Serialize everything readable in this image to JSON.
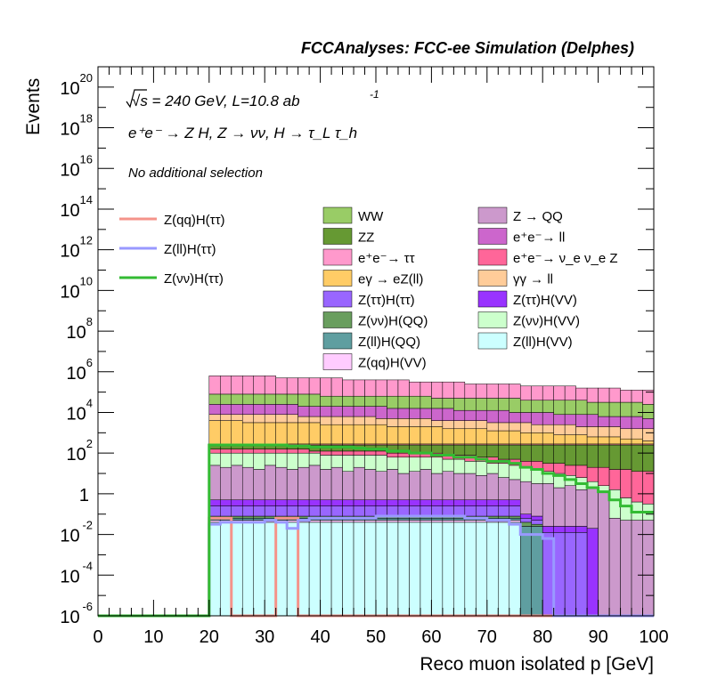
{
  "chart_data": {
    "type": "area",
    "title": "FCCAnalyses: FCC-ee Simulation (Delphes)",
    "ylabel": "Events",
    "xlabel": "Reco muon isolated p [GeV]",
    "xlim": [
      0,
      100
    ],
    "ylim_log10": [
      -6,
      21
    ],
    "yscale": "log",
    "x_ticks": [
      0,
      10,
      20,
      30,
      40,
      50,
      60,
      70,
      80,
      90,
      100
    ],
    "x_tick_labels": [
      "0",
      "10",
      "20",
      "30",
      "40",
      "50",
      "60",
      "70",
      "80",
      "90",
      "100"
    ],
    "y_tick_labels": [
      {
        "exp": 20,
        "text": "10",
        "sup": "20"
      },
      {
        "exp": 18,
        "text": "10",
        "sup": "18"
      },
      {
        "exp": 16,
        "text": "10",
        "sup": "16"
      },
      {
        "exp": 14,
        "text": "10",
        "sup": "14"
      },
      {
        "exp": 12,
        "text": "10",
        "sup": "12"
      },
      {
        "exp": 10,
        "text": "10",
        "sup": "10"
      },
      {
        "exp": 8,
        "text": "10",
        "sup": "8"
      },
      {
        "exp": 6,
        "text": "10",
        "sup": "6"
      },
      {
        "exp": 4,
        "text": "10",
        "sup": "4"
      },
      {
        "exp": 2,
        "text": "10",
        "sup": "2"
      },
      {
        "exp": 0,
        "text": "1",
        "sup": ""
      },
      {
        "exp": -2,
        "text": "10",
        "sup": "-2"
      },
      {
        "exp": -4,
        "text": "10",
        "sup": "-4"
      },
      {
        "exp": -6,
        "text": "10",
        "sup": "-6"
      }
    ],
    "annotations": {
      "energy": "√s = 240 GeV, L=10.8 ab",
      "energy_sup": "-1",
      "process": "e⁺e⁻ → Z H, Z → νν, H → τ_L τ_h",
      "selection": "No additional selection"
    },
    "bin_width": 2,
    "bin_starts": [
      20,
      22,
      24,
      26,
      28,
      30,
      32,
      34,
      36,
      38,
      40,
      42,
      44,
      46,
      48,
      50,
      52,
      54,
      56,
      58,
      60,
      62,
      64,
      66,
      68,
      70,
      72,
      74,
      76,
      78,
      80,
      82,
      84,
      86,
      88,
      90,
      92,
      94,
      96,
      98
    ],
    "stack_bottom_log10": -6,
    "stack_layers": [
      {
        "name": "Z(ll)H(VV)",
        "color": "#ccffff",
        "log10_top": [
          -1.4,
          -1.4,
          -1.4,
          -1.4,
          -1.4,
          -1.4,
          -1.4,
          -1.4,
          -1.4,
          -1.4,
          -1.4,
          -1.4,
          -1.4,
          -1.4,
          -1.4,
          -1.4,
          -1.4,
          -1.4,
          -1.4,
          -1.4,
          -1.4,
          -1.4,
          -1.4,
          -1.4,
          -1.4,
          -1.4,
          -1.4,
          -1.4,
          -6,
          -6,
          -6,
          -6,
          -6,
          -6,
          -6,
          -6,
          -6,
          -6,
          -6,
          -6
        ]
      },
      {
        "name": "Z(qq)H(VV)",
        "color": "#ffccff",
        "log10_top": [
          -1.3,
          -1.3,
          -1.3,
          -1.3,
          -1.3,
          -1.3,
          -1.3,
          -1.3,
          -1.3,
          -1.3,
          -1.3,
          -1.3,
          -1.3,
          -1.3,
          -1.3,
          -1.3,
          -1.3,
          -1.3,
          -1.3,
          -1.3,
          -1.3,
          -1.3,
          -1.3,
          -1.3,
          -1.3,
          -1.3,
          -1.3,
          -1.3,
          -6,
          -6,
          -6,
          -6,
          -6,
          -6,
          -6,
          -6,
          -6,
          -6,
          -6,
          -6
        ]
      },
      {
        "name": "Z(ll)H(QQ)",
        "color": "#5f9ea0",
        "log10_top": [
          -1.2,
          -1.2,
          -1.2,
          -1.2,
          -1.2,
          -1.2,
          -1.2,
          -1.2,
          -1.2,
          -1.2,
          -1.2,
          -1.2,
          -1.2,
          -1.2,
          -1.2,
          -1.2,
          -1.2,
          -1.2,
          -1.2,
          -1.2,
          -1.2,
          -1.2,
          -1.2,
          -1.2,
          -1.2,
          -1.2,
          -1.2,
          -1.2,
          -1.6,
          -1.6,
          -6,
          -6,
          -6,
          -6,
          -6,
          -6,
          -6,
          -6,
          -6,
          -6
        ]
      },
      {
        "name": "Z(νν)H(QQ)",
        "color": "#699e5e",
        "log10_top": [
          -1.1,
          -1.1,
          -1.1,
          -1.1,
          -1.1,
          -1.1,
          -1.1,
          -1.1,
          -1.1,
          -1.1,
          -1.1,
          -1.1,
          -1.1,
          -1.1,
          -1.1,
          -1.1,
          -1.1,
          -1.1,
          -1.1,
          -1.1,
          -1.1,
          -1.1,
          -1.1,
          -1.1,
          -1.1,
          -1.1,
          -1.1,
          -1.1,
          -1.4,
          -1.5,
          -6,
          -6,
          -6,
          -6,
          -6,
          -6,
          -6,
          -6,
          -6,
          -6
        ]
      },
      {
        "name": "Z(ττ)H(ττ)",
        "color": "#9966ff",
        "log10_top": [
          -0.6,
          -0.6,
          -0.6,
          -0.6,
          -0.6,
          -0.6,
          -0.6,
          -0.6,
          -0.6,
          -0.6,
          -0.6,
          -0.6,
          -0.6,
          -0.6,
          -0.6,
          -0.6,
          -0.6,
          -0.6,
          -0.6,
          -0.6,
          -0.6,
          -0.6,
          -0.6,
          -0.6,
          -0.6,
          -0.6,
          -0.6,
          -0.6,
          -1.2,
          -1.3,
          -1.9,
          -1.9,
          -1.9,
          -1.9,
          -6,
          -6,
          -6,
          -6,
          -6,
          -6
        ]
      },
      {
        "name": "Z(ττ)H(VV)",
        "color": "#9933ff",
        "log10_top": [
          -0.3,
          -0.3,
          -0.3,
          -0.3,
          -0.3,
          -0.3,
          -0.3,
          -0.3,
          -0.3,
          -0.3,
          -0.3,
          -0.3,
          -0.3,
          -0.3,
          -0.3,
          -0.3,
          -0.3,
          -0.3,
          -0.3,
          -0.3,
          -0.3,
          -0.3,
          -0.3,
          -0.3,
          -0.3,
          -0.3,
          -0.3,
          -0.3,
          -1.0,
          -1.1,
          -1.6,
          -1.6,
          -1.6,
          -1.6,
          -1.7,
          -6,
          -6,
          -6,
          -6,
          -6
        ]
      },
      {
        "name": "Z → QQ",
        "color": "#cc99cc",
        "log10_top": [
          1.4,
          1.3,
          1.4,
          1.3,
          1.2,
          1.4,
          1.3,
          1.2,
          1.3,
          1.4,
          1.2,
          1.3,
          1.1,
          1.3,
          1.2,
          1.1,
          1.2,
          1.0,
          1.1,
          1.2,
          1.0,
          1.1,
          1.0,
          1.0,
          0.9,
          1.0,
          0.8,
          0.7,
          0.6,
          0.5,
          0.5,
          0.3,
          0.4,
          0.2,
          0.3,
          0.1,
          -1.2,
          -1.3,
          -1.3,
          -1.3
        ]
      },
      {
        "name": "Z(νν)H(VV)",
        "color": "#ccffcc",
        "log10_top": [
          2.0,
          2.0,
          2.0,
          2.0,
          2.0,
          2.0,
          2.0,
          2.0,
          2.0,
          2.0,
          1.9,
          1.9,
          1.9,
          1.9,
          1.9,
          1.9,
          1.8,
          1.8,
          1.8,
          1.8,
          1.8,
          1.7,
          1.7,
          1.6,
          1.6,
          1.5,
          1.5,
          1.4,
          1.3,
          1.2,
          1.1,
          1.0,
          0.9,
          0.8,
          0.6,
          0.4,
          0.2,
          -0.2,
          -0.4,
          -0.5
        ]
      },
      {
        "name": "e⁺e⁻ → ν_e ν_e Z",
        "color": "#ff6699",
        "log10_top": [
          2.2,
          2.2,
          2.2,
          2.2,
          2.2,
          2.2,
          2.2,
          2.2,
          2.2,
          2.1,
          2.1,
          2.1,
          2.1,
          2.1,
          2.1,
          2.1,
          2.0,
          2.0,
          2.0,
          2.0,
          2.0,
          1.9,
          1.9,
          1.9,
          1.8,
          1.8,
          1.7,
          1.7,
          1.6,
          1.6,
          1.5,
          1.5,
          1.4,
          1.4,
          1.3,
          1.3,
          1.2,
          1.2,
          1.1,
          1.1
        ]
      },
      {
        "name": "ZZ",
        "color": "#669933",
        "log10_top": [
          2.4,
          2.4,
          2.4,
          2.4,
          2.4,
          2.4,
          2.4,
          2.4,
          2.4,
          2.4,
          2.4,
          2.4,
          2.4,
          2.4,
          2.4,
          2.4,
          2.4,
          2.4,
          2.4,
          2.4,
          2.4,
          2.4,
          2.4,
          2.4,
          2.4,
          2.4,
          2.4,
          2.4,
          2.4,
          2.4,
          2.4,
          2.4,
          2.4,
          2.4,
          2.4,
          2.4,
          2.4,
          2.4,
          2.4,
          2.4
        ]
      },
      {
        "name": "Z(qq)H(ττ)",
        "color": "#ff9999",
        "log10_top": [
          2.45,
          2.45,
          2.45,
          2.45,
          2.45,
          2.45,
          2.45,
          2.45,
          2.45,
          2.45,
          2.45,
          2.45,
          2.45,
          2.45,
          2.45,
          2.45,
          2.45,
          2.45,
          2.45,
          2.45,
          2.45,
          2.45,
          2.45,
          2.45,
          2.45,
          2.45,
          2.45,
          2.45,
          2.45,
          2.45,
          2.45,
          2.45,
          2.45,
          2.45,
          2.45,
          2.45,
          2.45,
          2.45,
          2.45,
          2.45
        ]
      },
      {
        "name": "eγ → eZ(ll)",
        "color": "#ffcc66",
        "log10_top": [
          3.6,
          3.6,
          3.6,
          3.5,
          3.5,
          3.5,
          3.5,
          3.5,
          3.5,
          3.5,
          3.4,
          3.4,
          3.4,
          3.4,
          3.4,
          3.4,
          3.3,
          3.3,
          3.3,
          3.3,
          3.3,
          3.2,
          3.2,
          3.2,
          3.2,
          3.1,
          3.1,
          3.1,
          3.0,
          3.0,
          3.0,
          2.9,
          2.9,
          2.9,
          2.8,
          2.8,
          2.8,
          2.7,
          2.7,
          2.6
        ]
      },
      {
        "name": "γγ → ll",
        "color": "#ffcc99",
        "log10_top": [
          3.9,
          3.9,
          3.9,
          3.9,
          3.9,
          3.9,
          3.9,
          3.9,
          3.8,
          3.8,
          3.8,
          3.8,
          3.8,
          3.8,
          3.8,
          3.7,
          3.7,
          3.7,
          3.7,
          3.7,
          3.6,
          3.6,
          3.6,
          3.6,
          3.6,
          3.5,
          3.5,
          3.5,
          3.5,
          3.4,
          3.4,
          3.4,
          3.4,
          3.3,
          3.3,
          3.3,
          3.3,
          3.2,
          3.2,
          3.2
        ]
      },
      {
        "name": "e⁺e⁻ → ll",
        "color": "#cc66cc",
        "log10_top": [
          4.4,
          4.4,
          4.4,
          4.4,
          4.4,
          4.4,
          4.4,
          4.4,
          4.3,
          4.3,
          4.3,
          4.3,
          4.3,
          4.3,
          4.3,
          4.3,
          4.2,
          4.2,
          4.2,
          4.2,
          4.2,
          4.2,
          4.1,
          4.1,
          4.1,
          4.1,
          4.1,
          4.0,
          4.0,
          4.0,
          4.0,
          3.9,
          3.9,
          3.9,
          3.9,
          3.8,
          3.8,
          3.8,
          3.8,
          3.7
        ]
      },
      {
        "name": "WW",
        "color": "#99cc66",
        "log10_top": [
          4.9,
          4.9,
          4.9,
          4.9,
          4.9,
          4.9,
          4.9,
          4.9,
          4.9,
          4.9,
          4.8,
          4.8,
          4.8,
          4.8,
          4.8,
          4.8,
          4.8,
          4.8,
          4.8,
          4.8,
          4.7,
          4.7,
          4.7,
          4.7,
          4.7,
          4.7,
          4.7,
          4.7,
          4.6,
          4.6,
          4.6,
          4.6,
          4.6,
          4.6,
          4.5,
          4.5,
          4.5,
          4.5,
          4.5,
          4.4
        ]
      },
      {
        "name": "e⁺e⁻ → ττ",
        "color": "#ff99cc",
        "log10_top": [
          5.8,
          5.8,
          5.8,
          5.8,
          5.8,
          5.8,
          5.7,
          5.7,
          5.7,
          5.7,
          5.7,
          5.7,
          5.6,
          5.6,
          5.6,
          5.6,
          5.6,
          5.6,
          5.5,
          5.5,
          5.5,
          5.5,
          5.5,
          5.4,
          5.4,
          5.4,
          5.4,
          5.4,
          5.3,
          5.3,
          5.3,
          5.3,
          5.3,
          5.2,
          5.2,
          5.2,
          5.2,
          5.1,
          5.1,
          5.1
        ]
      }
    ],
    "signal_lines": [
      {
        "name": "Z(qq)H(ττ)",
        "color": "#f4938a",
        "log10_values": [
          -1.2,
          -1.2,
          -6,
          -6,
          -6,
          -6,
          -1.2,
          -1.2,
          -6,
          -6,
          -6,
          -6,
          -6,
          -6,
          -6,
          -6,
          -6,
          -6,
          -6,
          -6,
          -6,
          -6,
          -6,
          -6,
          -6,
          -6,
          -6,
          -6,
          -6,
          -6,
          -6,
          -6,
          -6,
          -6,
          -6,
          -6,
          -6,
          -6,
          -6,
          -6
        ]
      },
      {
        "name": "Z(ll)H(ττ)",
        "color": "#9999ff",
        "log10_values": [
          -1.5,
          -1.4,
          -1.4,
          -1.4,
          -1.4,
          -1.3,
          -1.4,
          -1.7,
          -1.3,
          -1.2,
          -1.2,
          -1.2,
          -1.2,
          -1.2,
          -1.2,
          -1.1,
          -1.1,
          -1.1,
          -1.1,
          -1.1,
          -1.1,
          -1.1,
          -1.1,
          -1.2,
          -1.2,
          -1.3,
          -1.3,
          -1.5,
          -2.0,
          -2.0,
          -2.2,
          -6,
          -6,
          -6,
          -6,
          -6,
          -6,
          -6,
          -6,
          -6
        ]
      },
      {
        "name": "Z(νν)H(ττ)",
        "color": "#33bb33",
        "log10_values": [
          2.4,
          2.4,
          2.4,
          2.4,
          2.4,
          2.4,
          2.4,
          2.35,
          2.35,
          2.3,
          2.3,
          2.3,
          2.3,
          2.25,
          2.2,
          2.2,
          2.1,
          2.1,
          2.0,
          2.0,
          1.9,
          1.9,
          1.8,
          1.8,
          1.7,
          1.6,
          1.6,
          1.5,
          1.3,
          1.2,
          1.0,
          0.9,
          0.7,
          0.5,
          0.3,
          0.1,
          -0.3,
          -0.6,
          -0.9,
          -0.9
        ]
      }
    ],
    "legend_background": [
      {
        "name": "WW",
        "color": "#99cc66"
      },
      {
        "name": "Z → QQ",
        "color": "#cc99cc"
      },
      {
        "name": "ZZ",
        "color": "#669933"
      },
      {
        "name": "e⁺e⁻→ ll",
        "color": "#cc66cc"
      },
      {
        "name": "e⁺e⁻→ ττ",
        "color": "#ff99cc"
      },
      {
        "name": "e⁺e⁻→ ν_e ν_e Z",
        "color": "#ff6699"
      },
      {
        "name": "eγ → eZ(ll)",
        "color": "#ffcc66"
      },
      {
        "name": "γγ → ll",
        "color": "#ffcc99"
      },
      {
        "name": "Z(ττ)H(ττ)",
        "color": "#9966ff"
      },
      {
        "name": "Z(ττ)H(VV)",
        "color": "#9933ff"
      },
      {
        "name": "Z(νν)H(QQ)",
        "color": "#699e5e"
      },
      {
        "name": "Z(νν)H(VV)",
        "color": "#ccffcc"
      },
      {
        "name": "Z(ll)H(QQ)",
        "color": "#5f9ea0"
      },
      {
        "name": "Z(ll)H(VV)",
        "color": "#ccffff"
      },
      {
        "name": "Z(qq)H(VV)",
        "color": "#ffccff"
      }
    ],
    "legend_signal": [
      {
        "name": "Z(qq)H(ττ)",
        "color": "#f4938a"
      },
      {
        "name": "Z(ll)H(ττ)",
        "color": "#9999ff"
      },
      {
        "name": "Z(νν)H(ττ)",
        "color": "#33bb33"
      }
    ]
  }
}
